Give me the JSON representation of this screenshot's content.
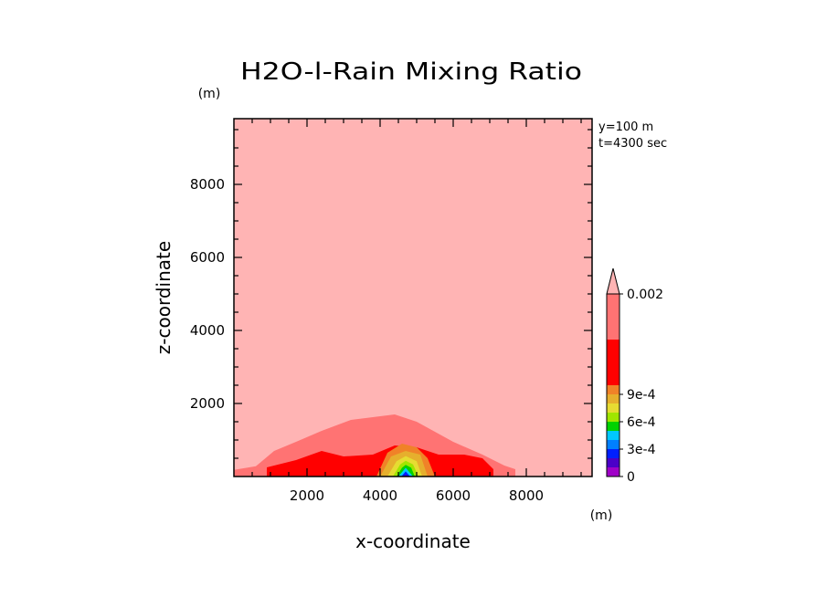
{
  "chart_data": {
    "type": "filled-contour",
    "title": "H2O-l-Rain Mixing Ratio",
    "xlabel": "x-coordinate",
    "ylabel": "z-coordinate",
    "x_unit": "(m)",
    "y_unit": "(m)",
    "xlim": [
      0,
      9800
    ],
    "ylim": [
      0,
      9800
    ],
    "x_ticks": [
      2000,
      4000,
      6000,
      8000
    ],
    "y_ticks": [
      2000,
      4000,
      6000,
      8000
    ],
    "annotations": [
      "y=100 m",
      "t=4300 sec"
    ],
    "colorbar": {
      "levels": [
        0,
        0.0001,
        0.0002,
        0.0003,
        0.0004,
        0.0005,
        0.0006,
        0.0007,
        0.0008,
        0.0009,
        0.001,
        0.0015,
        0.002
      ],
      "labeled_levels": [
        {
          "value": 0.002,
          "label": "0.002"
        },
        {
          "value": 0.0009,
          "label": "9e-4"
        },
        {
          "value": 0.0006,
          "label": "6e-4"
        },
        {
          "value": 0.0003,
          "label": "3e-4"
        },
        {
          "value": 0,
          "label": "0"
        }
      ],
      "colors": [
        "#a000c8",
        "#4b00c8",
        "#0020ff",
        "#0080ff",
        "#00c8ff",
        "#00d200",
        "#a0e600",
        "#e6dc32",
        "#e6af2d",
        "#f08228",
        "#ff0000",
        "#ff7373",
        "#ffb4b4"
      ],
      "extend": "max"
    },
    "fields": [
      {
        "level": 0.0015,
        "color": "#ff7373",
        "x": [
          0,
          600,
          1100,
          1700,
          2400,
          3200,
          4400,
          5000,
          6000,
          6800,
          7400,
          7700,
          7700,
          0
        ],
        "z": [
          180,
          280,
          700,
          950,
          1250,
          1550,
          1700,
          1500,
          950,
          600,
          300,
          200,
          0,
          0
        ]
      },
      {
        "level": 0.001,
        "color": "#ff0000",
        "x": [
          900,
          1700,
          2400,
          3000,
          3800,
          4400,
          5000,
          5600,
          6300,
          6800,
          7100,
          7100,
          900
        ],
        "z": [
          250,
          450,
          700,
          550,
          600,
          850,
          800,
          600,
          600,
          500,
          200,
          0,
          0
        ]
      },
      {
        "level": 0.0009,
        "color": "#f08228",
        "x": [
          3900,
          4200,
          4600,
          5000,
          5300,
          5500,
          3900
        ],
        "z": [
          0,
          650,
          900,
          800,
          500,
          0,
          0
        ]
      },
      {
        "level": 0.0008,
        "color": "#e6af2d",
        "x": [
          4000,
          4300,
          4700,
          5100,
          5300,
          4000
        ],
        "z": [
          0,
          550,
          700,
          600,
          0,
          0
        ]
      },
      {
        "level": 0.0007,
        "color": "#e6dc32",
        "x": [
          4200,
          4450,
          4700,
          5000,
          5150,
          4200
        ],
        "z": [
          0,
          420,
          560,
          420,
          0,
          0
        ]
      },
      {
        "level": 0.0006,
        "color": "#a0e600",
        "x": [
          4350,
          4550,
          4700,
          4900,
          5050,
          4350
        ],
        "z": [
          0,
          330,
          430,
          330,
          0,
          0
        ]
      },
      {
        "level": 0.0005,
        "color": "#00d200",
        "x": [
          4450,
          4600,
          4700,
          4850,
          4950,
          4450
        ],
        "z": [
          0,
          240,
          320,
          240,
          0,
          0
        ]
      },
      {
        "level": 0.0004,
        "color": "#00c8ff",
        "x": [
          4500,
          4700,
          4900,
          4500
        ],
        "z": [
          0,
          240,
          0,
          0
        ]
      },
      {
        "level": 0.0003,
        "color": "#0020ff",
        "x": [
          4580,
          4700,
          4820,
          4580
        ],
        "z": [
          0,
          140,
          0,
          0
        ]
      },
      {
        "level": 0.0001,
        "color": "#4b00c8",
        "x": [
          4650,
          4700,
          4750,
          4650
        ],
        "z": [
          0,
          60,
          0,
          0
        ]
      }
    ]
  }
}
